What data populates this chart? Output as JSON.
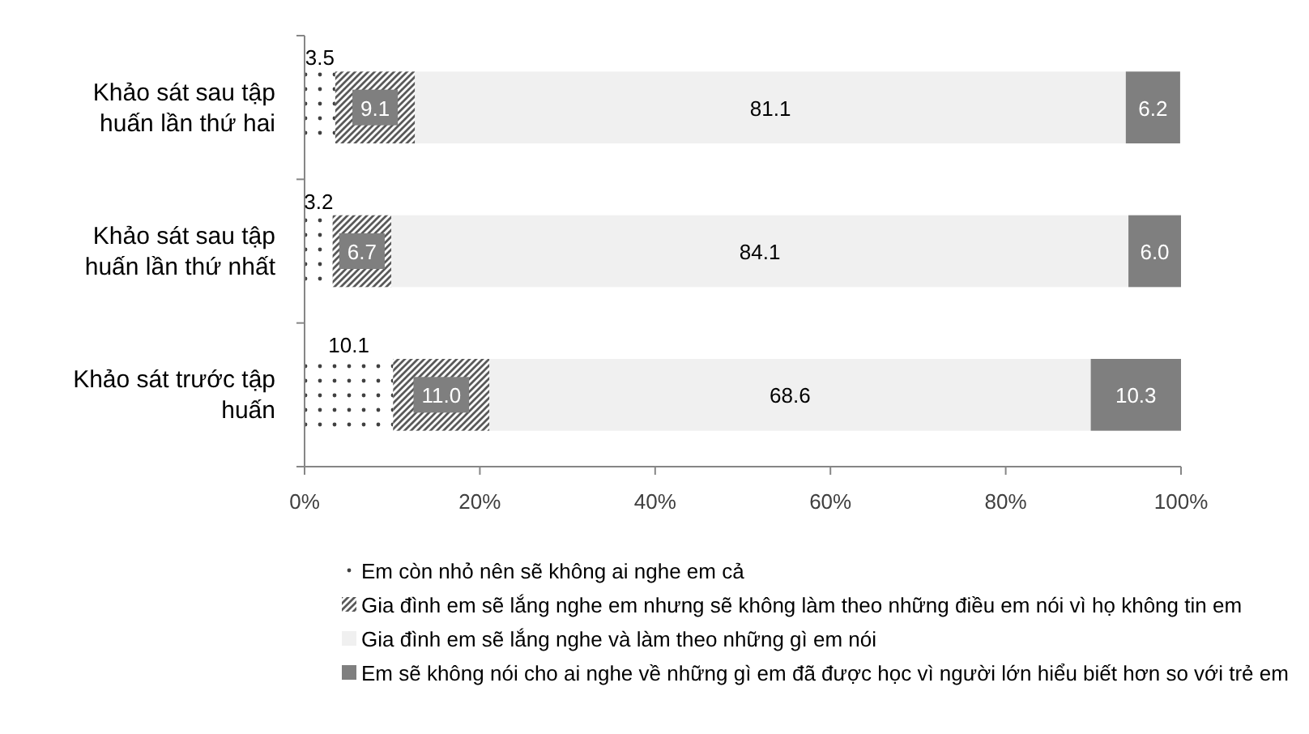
{
  "chart_data": {
    "type": "bar",
    "orientation": "horizontal",
    "stacked": true,
    "categories": [
      "Khảo sát sau tập huấn lần thứ hai",
      "Khảo sát sau tập huấn lần thứ nhất",
      "Khảo sát trước tập huấn"
    ],
    "series": [
      {
        "name": "Em còn nhỏ nên sẽ không ai nghe em cả",
        "color": "#404040",
        "values": [
          3.5,
          3.2,
          10.1
        ],
        "value_labels": [
          "3.5",
          "3.2",
          "10.1"
        ]
      },
      {
        "name": "Gia đình em sẽ lắng nghe em nhưng sẽ không làm theo những điều em nói vì họ không tin em",
        "color": "#595959",
        "values": [
          9.1,
          6.7,
          11.0
        ],
        "value_labels": [
          "9.1",
          "6.7",
          "11.0"
        ]
      },
      {
        "name": "Gia đình em sẽ lắng nghe và làm theo những gì em nói",
        "color": "#f0f0f0",
        "values": [
          81.1,
          84.1,
          68.6
        ],
        "value_labels": [
          "81.1",
          "84.1",
          "68.6"
        ]
      },
      {
        "name": "Em sẽ không nói cho ai nghe về những gì em đã được học vì người lớn hiểu biết hơn so với trẻ em",
        "color": "#7f7f7f",
        "values": [
          6.2,
          6.0,
          10.3
        ],
        "value_labels": [
          "6.2",
          "6.0",
          "10.3"
        ]
      }
    ],
    "xlim": [
      0,
      100
    ],
    "xticks": [
      {
        "value": 0,
        "label": "0%"
      },
      {
        "value": 20,
        "label": "20%"
      },
      {
        "value": 40,
        "label": "40%"
      },
      {
        "value": 60,
        "label": "60%"
      },
      {
        "value": 80,
        "label": "80%"
      },
      {
        "value": 100,
        "label": "100%"
      }
    ],
    "legend": "bottom"
  }
}
